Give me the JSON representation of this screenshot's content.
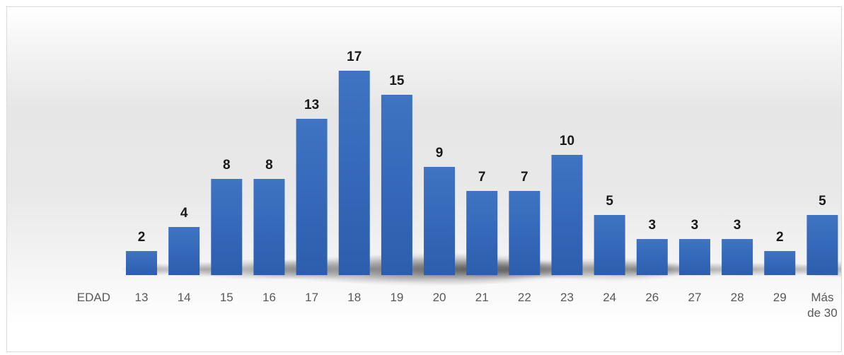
{
  "chart_data": {
    "type": "bar",
    "xlabel": "EDAD",
    "categories": [
      "13",
      "14",
      "15",
      "16",
      "17",
      "18",
      "19",
      "20",
      "21",
      "22",
      "23",
      "24",
      "26",
      "27",
      "28",
      "29",
      "Más de 30"
    ],
    "values": [
      2,
      4,
      8,
      8,
      13,
      17,
      15,
      9,
      7,
      7,
      10,
      5,
      3,
      3,
      3,
      2,
      5
    ],
    "data_labels": true,
    "legend": "none",
    "grid": false,
    "colors": {
      "bar": "#3a6fbf",
      "bar_dark": "#2d5eae",
      "label": "#1a1a1a",
      "tick": "#595959"
    }
  }
}
